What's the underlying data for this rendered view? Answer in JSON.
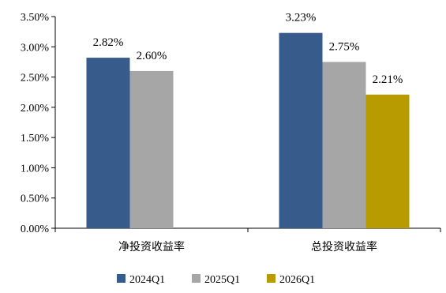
{
  "chart_data": {
    "type": "bar",
    "categories": [
      "净投资收益率",
      "总投资收益率"
    ],
    "series": [
      {
        "name": "2024Q1",
        "color": "#375C8C",
        "values": [
          2.82,
          3.23
        ],
        "labels": [
          "2.82%",
          "3.23%"
        ]
      },
      {
        "name": "2025Q1",
        "color": "#A6A6A6",
        "values": [
          2.6,
          2.75
        ],
        "labels": [
          "2.60%",
          "2.75%"
        ]
      },
      {
        "name": "2026Q1",
        "color": "#B89B00",
        "values": [
          null,
          2.21
        ],
        "labels": [
          null,
          "2.21%"
        ]
      }
    ],
    "ylim": [
      0,
      3.5
    ],
    "yticks": [
      "0.00%",
      "0.50%",
      "1.00%",
      "1.50%",
      "2.00%",
      "2.50%",
      "3.00%",
      "3.50%"
    ],
    "ytick_values": [
      0,
      0.5,
      1.0,
      1.5,
      2.0,
      2.5,
      3.0,
      3.5
    ],
    "title": "",
    "xlabel": "",
    "ylabel": "",
    "grid": false,
    "legend_position": "bottom"
  }
}
